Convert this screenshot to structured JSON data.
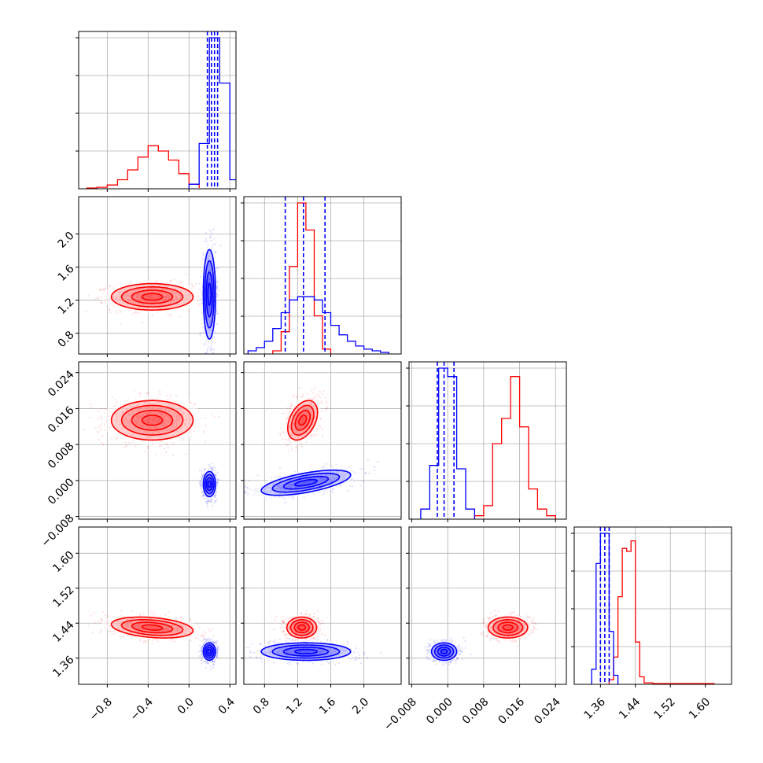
{
  "chart_data": {
    "type": "corner",
    "colors": {
      "red": "#ff0000",
      "blue": "#0000ff"
    },
    "grid": true,
    "parameters": [
      {
        "range": [
          -1.08,
          0.46
        ],
        "ticks": [
          -0.8,
          -0.4,
          0.0,
          0.4
        ],
        "tick_labels": [
          "−0.8",
          "−0.4",
          "0.0",
          "0.4"
        ]
      },
      {
        "range": [
          0.55,
          2.45
        ],
        "ticks": [
          0.8,
          1.2,
          1.6,
          2.0
        ],
        "tick_labels": [
          "0.8",
          "1.2",
          "1.6",
          "2.0"
        ]
      },
      {
        "range": [
          -0.0086,
          0.0264
        ],
        "ticks": [
          -0.008,
          0.0,
          0.008,
          0.016,
          0.024
        ],
        "tick_labels": [
          "−0.008",
          "0.000",
          "0.008",
          "0.016",
          "0.024"
        ]
      },
      {
        "range": [
          1.3,
          1.66
        ],
        "ticks": [
          1.36,
          1.44,
          1.52,
          1.6
        ],
        "tick_labels": [
          "1.36",
          "1.44",
          "1.52",
          "1.60"
        ]
      }
    ],
    "diagonal": [
      {
        "quantile_lines": [
          0.18,
          0.22,
          0.25,
          0.28
        ],
        "red_hist": {
          "edges": [
            -1.0,
            -0.9,
            -0.8,
            -0.7,
            -0.6,
            -0.5,
            -0.4,
            -0.3,
            -0.2,
            -0.1,
            0.0,
            0.1
          ],
          "counts": [
            1,
            2,
            5,
            12,
            25,
            42,
            57,
            50,
            38,
            20,
            6,
            1
          ]
        },
        "blue_hist": {
          "edges": [
            0.0,
            0.1,
            0.2,
            0.3,
            0.4,
            0.5
          ],
          "counts": [
            6,
            60,
            200,
            140,
            12
          ]
        }
      },
      {
        "quantile_lines": [
          1.05,
          1.27,
          1.53
        ],
        "red_hist": {
          "edges": [
            0.9,
            1.0,
            1.1,
            1.2,
            1.3,
            1.4,
            1.5,
            1.6
          ],
          "counts": [
            2,
            14,
            55,
            95,
            78,
            24,
            3
          ]
        },
        "blue_hist": {
          "edges": [
            0.6,
            0.7,
            0.8,
            0.9,
            1.0,
            1.1,
            1.2,
            1.3,
            1.4,
            1.5,
            1.6,
            1.7,
            1.8,
            1.9,
            2.0,
            2.1,
            2.2,
            2.3
          ],
          "counts": [
            2,
            4,
            8,
            16,
            26,
            34,
            36,
            36,
            34,
            26,
            18,
            12,
            8,
            5,
            3,
            2,
            1
          ]
        }
      },
      {
        "quantile_lines": [
          -0.0023,
          -0.0008,
          0.0014
        ],
        "red_hist": {
          "edges": [
            0.006,
            0.008,
            0.01,
            0.012,
            0.014,
            0.016,
            0.018,
            0.02,
            0.022,
            0.024
          ],
          "counts": [
            2,
            8,
            45,
            60,
            85,
            55,
            18,
            6,
            2
          ]
        },
        "blue_hist": {
          "edges": [
            -0.006,
            -0.004,
            -0.002,
            0.0,
            0.002,
            0.004,
            0.006
          ],
          "counts": [
            6,
            32,
            90,
            85,
            30,
            6
          ]
        }
      },
      {
        "quantile_lines": [
          1.36,
          1.37,
          1.38
        ],
        "red_hist": {
          "edges": [
            1.38,
            1.39,
            1.4,
            1.41,
            1.42,
            1.43,
            1.44,
            1.45,
            1.46,
            1.48,
            1.62
          ],
          "counts": [
            3,
            18,
            58,
            90,
            88,
            95,
            28,
            5,
            1,
            0.5
          ]
        },
        "blue_hist": {
          "edges": [
            1.34,
            1.35,
            1.36,
            1.37,
            1.38,
            1.39,
            1.4
          ],
          "counts": [
            10,
            80,
            100,
            100,
            35,
            6
          ]
        }
      }
    ],
    "pairs": [
      {
        "row": 1,
        "col": 0,
        "red": {
          "center": [
            -0.36,
            1.24
          ],
          "sd": [
            0.2,
            0.08
          ],
          "rho": 0.0
        },
        "blue": {
          "center": [
            0.2,
            1.27
          ],
          "sd": [
            0.03,
            0.27
          ],
          "rho": 0.0
        }
      },
      {
        "row": 2,
        "col": 0,
        "red": {
          "center": [
            -0.36,
            0.0134
          ],
          "sd": [
            0.2,
            0.0022
          ],
          "rho": 0.0
        },
        "blue": {
          "center": [
            0.2,
            -0.0008
          ],
          "sd": [
            0.03,
            0.0014
          ],
          "rho": 0.0
        }
      },
      {
        "row": 2,
        "col": 1,
        "red": {
          "center": [
            1.26,
            0.0134
          ],
          "sd": [
            0.09,
            0.0022
          ],
          "rho": 0.4
        },
        "blue": {
          "center": [
            1.3,
            -0.0005
          ],
          "sd": [
            0.27,
            0.0014
          ],
          "rho": 0.62
        }
      },
      {
        "row": 3,
        "col": 0,
        "red": {
          "center": [
            -0.36,
            1.43
          ],
          "sd": [
            0.2,
            0.012
          ],
          "rho": -0.3
        },
        "blue": {
          "center": [
            0.2,
            1.375
          ],
          "sd": [
            0.03,
            0.01
          ],
          "rho": 0.0
        }
      },
      {
        "row": 3,
        "col": 1,
        "red": {
          "center": [
            1.25,
            1.43
          ],
          "sd": [
            0.09,
            0.012
          ],
          "rho": 0.0
        },
        "blue": {
          "center": [
            1.3,
            1.375
          ],
          "sd": [
            0.27,
            0.01
          ],
          "rho": 0.0
        }
      },
      {
        "row": 3,
        "col": 2,
        "red": {
          "center": [
            0.0134,
            1.43
          ],
          "sd": [
            0.0022,
            0.012
          ],
          "rho": 0.0
        },
        "blue": {
          "center": [
            -0.0008,
            1.375
          ],
          "sd": [
            0.0014,
            0.01
          ],
          "rho": 0.0
        }
      }
    ]
  }
}
